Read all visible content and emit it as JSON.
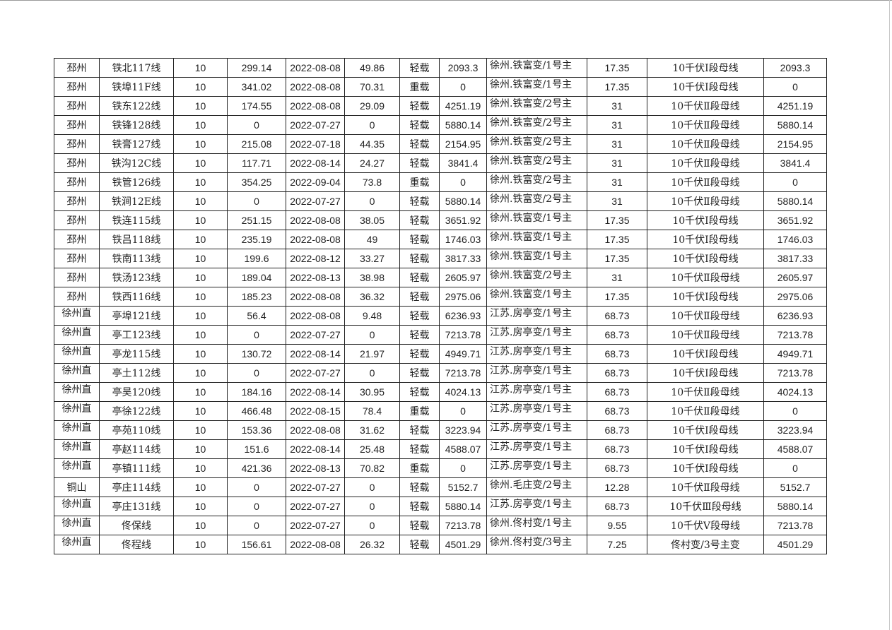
{
  "rows": [
    [
      "邳州",
      "铁北117线",
      "10",
      "299.14",
      "2022-08-08",
      "49.86",
      "轻载",
      "2093.3",
      "徐州.铁富变/1号主",
      "17.35",
      "10千伏Ⅰ段母线",
      "2093.3"
    ],
    [
      "邳州",
      "铁埠11F线",
      "10",
      "341.02",
      "2022-08-08",
      "70.31",
      "重载",
      "0",
      "徐州.铁富变/1号主",
      "17.35",
      "10千伏Ⅰ段母线",
      "0"
    ],
    [
      "邳州",
      "铁东122线",
      "10",
      "174.55",
      "2022-08-08",
      "29.09",
      "轻载",
      "4251.19",
      "徐州.铁富变/2号主",
      "31",
      "10千伏Ⅱ段母线",
      "4251.19"
    ],
    [
      "邳州",
      "铁锋128线",
      "10",
      "0",
      "2022-07-27",
      "0",
      "轻载",
      "5880.14",
      "徐州.铁富变/2号主",
      "31",
      "10千伏Ⅱ段母线",
      "5880.14"
    ],
    [
      "邳州",
      "铁膏127线",
      "10",
      "215.08",
      "2022-07-18",
      "44.35",
      "轻载",
      "2154.95",
      "徐州.铁富变/2号主",
      "31",
      "10千伏Ⅱ段母线",
      "2154.95"
    ],
    [
      "邳州",
      "铁沟12C线",
      "10",
      "117.71",
      "2022-08-14",
      "24.27",
      "轻载",
      "3841.4",
      "徐州.铁富变/2号主",
      "31",
      "10千伏Ⅱ段母线",
      "3841.4"
    ],
    [
      "邳州",
      "铁管126线",
      "10",
      "354.25",
      "2022-09-04",
      "73.8",
      "重载",
      "0",
      "徐州.铁富变/2号主",
      "31",
      "10千伏Ⅱ段母线",
      "0"
    ],
    [
      "邳州",
      "铁涧12E线",
      "10",
      "0",
      "2022-07-27",
      "0",
      "轻载",
      "5880.14",
      "徐州.铁富变/2号主",
      "31",
      "10千伏Ⅱ段母线",
      "5880.14"
    ],
    [
      "邳州",
      "铁连115线",
      "10",
      "251.15",
      "2022-08-08",
      "38.05",
      "轻载",
      "3651.92",
      "徐州.铁富变/1号主",
      "17.35",
      "10千伏Ⅰ段母线",
      "3651.92"
    ],
    [
      "邳州",
      "铁吕118线",
      "10",
      "235.19",
      "2022-08-08",
      "49",
      "轻载",
      "1746.03",
      "徐州.铁富变/1号主",
      "17.35",
      "10千伏Ⅰ段母线",
      "1746.03"
    ],
    [
      "邳州",
      "铁南113线",
      "10",
      "199.6",
      "2022-08-12",
      "33.27",
      "轻载",
      "3817.33",
      "徐州.铁富变/1号主",
      "17.35",
      "10千伏Ⅰ段母线",
      "3817.33"
    ],
    [
      "邳州",
      "铁汤123线",
      "10",
      "189.04",
      "2022-08-13",
      "38.98",
      "轻载",
      "2605.97",
      "徐州.铁富变/2号主",
      "31",
      "10千伏Ⅱ段母线",
      "2605.97"
    ],
    [
      "邳州",
      "铁西116线",
      "10",
      "185.23",
      "2022-08-08",
      "36.32",
      "轻载",
      "2975.06",
      "徐州.铁富变/1号主",
      "17.35",
      "10千伏Ⅰ段母线",
      "2975.06"
    ],
    [
      "徐州直",
      "亭埠121线",
      "10",
      "56.4",
      "2022-08-08",
      "9.48",
      "轻载",
      "6236.93",
      "江苏.房亭变/1号主",
      "68.73",
      "10千伏Ⅱ段母线",
      "6236.93"
    ],
    [
      "徐州直",
      "亭工123线",
      "10",
      "0",
      "2022-07-27",
      "0",
      "轻载",
      "7213.78",
      "江苏.房亭变/1号主",
      "68.73",
      "10千伏Ⅱ段母线",
      "7213.78"
    ],
    [
      "徐州直",
      "亭龙115线",
      "10",
      "130.72",
      "2022-08-14",
      "21.97",
      "轻载",
      "4949.71",
      "江苏.房亭变/1号主",
      "68.73",
      "10千伏Ⅰ段母线",
      "4949.71"
    ],
    [
      "徐州直",
      "亭土112线",
      "10",
      "0",
      "2022-07-27",
      "0",
      "轻载",
      "7213.78",
      "江苏.房亭变/1号主",
      "68.73",
      "10千伏Ⅰ段母线",
      "7213.78"
    ],
    [
      "徐州直",
      "亭吴120线",
      "10",
      "184.16",
      "2022-08-14",
      "30.95",
      "轻载",
      "4024.13",
      "江苏.房亭变/1号主",
      "68.73",
      "10千伏Ⅱ段母线",
      "4024.13"
    ],
    [
      "徐州直",
      "亭徐122线",
      "10",
      "466.48",
      "2022-08-15",
      "78.4",
      "重载",
      "0",
      "江苏.房亭变/1号主",
      "68.73",
      "10千伏Ⅱ段母线",
      "0"
    ],
    [
      "徐州直",
      "亭苑110线",
      "10",
      "153.36",
      "2022-08-08",
      "31.62",
      "轻载",
      "3223.94",
      "江苏.房亭变/1号主",
      "68.73",
      "10千伏Ⅰ段母线",
      "3223.94"
    ],
    [
      "徐州直",
      "亭赵114线",
      "10",
      "151.6",
      "2022-08-14",
      "25.48",
      "轻载",
      "4588.07",
      "江苏.房亭变/1号主",
      "68.73",
      "10千伏Ⅰ段母线",
      "4588.07"
    ],
    [
      "徐州直",
      "亭镇111线",
      "10",
      "421.36",
      "2022-08-13",
      "70.82",
      "重载",
      "0",
      "江苏.房亭变/1号主",
      "68.73",
      "10千伏Ⅰ段母线",
      "0"
    ],
    [
      "铜山",
      "亭庄114线",
      "10",
      "0",
      "2022-07-27",
      "0",
      "轻载",
      "5152.7",
      "徐州.毛庄变/2号主",
      "12.28",
      "10千伏Ⅱ段母线",
      "5152.7"
    ],
    [
      "徐州直",
      "亭庄131线",
      "10",
      "0",
      "2022-07-27",
      "0",
      "轻载",
      "5880.14",
      "江苏.房亭变/1号主",
      "68.73",
      "10千伏Ⅲ段母线",
      "5880.14"
    ],
    [
      "徐州直",
      "佟保线",
      "10",
      "0",
      "2022-07-27",
      "0",
      "轻载",
      "7213.78",
      "徐州.佟村变/1号主",
      "9.55",
      "10千伏Ⅴ段母线",
      "7213.78"
    ],
    [
      "徐州直",
      "佟程线",
      "10",
      "156.61",
      "2022-08-08",
      "26.32",
      "轻载",
      "4501.29",
      "徐州.佟村变/3号主",
      "7.25",
      "佟村变/3号主变",
      "4501.29"
    ]
  ]
}
